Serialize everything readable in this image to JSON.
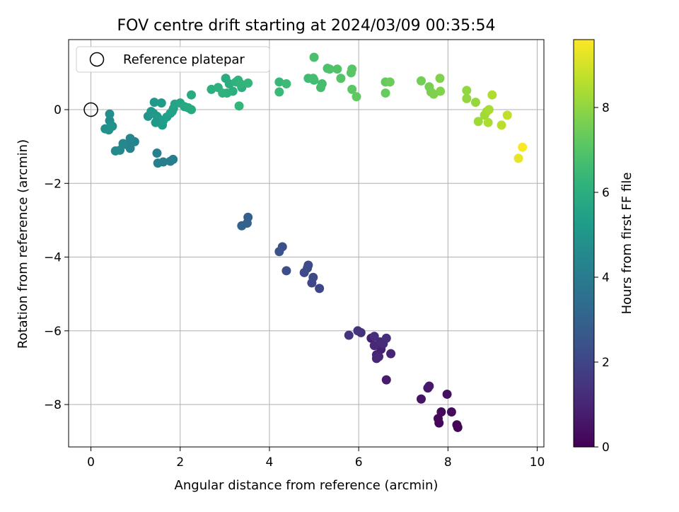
{
  "chart_data": {
    "type": "scatter",
    "title": "FOV centre drift starting at 2024/03/09 00:35:54",
    "xlabel": "Angular distance from reference (arcmin)",
    "ylabel": "Rotation from reference (arcmin)",
    "xlim": [
      -0.5,
      10.15
    ],
    "ylim": [
      -9.15,
      1.9
    ],
    "x_ticks": [
      0,
      2,
      4,
      6,
      8,
      10
    ],
    "y_ticks": [
      -8,
      -6,
      -4,
      -2,
      0
    ],
    "grid": true,
    "legend": {
      "position": "top-left",
      "entries": [
        "Reference platepar"
      ]
    },
    "reference_point": {
      "x": 0,
      "y": 0
    },
    "colorbar": {
      "label": "Hours from first FF file",
      "colormap": "viridis",
      "range": [
        0,
        9.6
      ],
      "ticks": [
        0,
        2,
        4,
        6,
        8
      ]
    },
    "series": [
      {
        "x": [
          8.22,
          8.2,
          7.8,
          7.78,
          7.85,
          8.08,
          7.98,
          7.4,
          7.55,
          7.58,
          6.62,
          6.28,
          6.5,
          6.4,
          6.72,
          6.4,
          6.45,
          6.35,
          6.48,
          6.55,
          6.62,
          6.35,
          6.05,
          5.98,
          5.78,
          5.12,
          4.95,
          4.98,
          4.78,
          4.85,
          4.87,
          4.38,
          4.29,
          4.22,
          3.52,
          3.5,
          3.38,
          1.84,
          1.78,
          1.62,
          1.5,
          1.48,
          0.98,
          0.88,
          0.88,
          0.8,
          0.72,
          0.65,
          0.55,
          0.48,
          0.42,
          0.42,
          0.4,
          0.32,
          0.45,
          1.28,
          1.35,
          1.4,
          1.48,
          1.52,
          1.55,
          1.6,
          1.62,
          1.7,
          1.78,
          1.82,
          1.85,
          1.88,
          2.0,
          2.1,
          2.18,
          2.25,
          2.25,
          1.42,
          1.45,
          1.58,
          3.02,
          3.1,
          3.18,
          3.38,
          3.05,
          3.25,
          3.3,
          3.35,
          3.52,
          2.7,
          2.85,
          2.95,
          3.32,
          4.22,
          4.22,
          4.38,
          4.87,
          5.0,
          5.15,
          5.18,
          5.0,
          5.3,
          5.35,
          5.52,
          5.6,
          5.85,
          5.83,
          5.85,
          5.95,
          4.98,
          6.6,
          6.6,
          6.7,
          7.4,
          7.58,
          7.62,
          7.68,
          7.82,
          7.83,
          8.42,
          8.42,
          8.62,
          8.68,
          8.82,
          8.87,
          8.92,
          8.9,
          8.99,
          9.2,
          9.33,
          9.58,
          9.67
        ],
        "y": [
          -8.62,
          -8.55,
          -8.5,
          -8.38,
          -8.2,
          -8.2,
          -7.72,
          -7.85,
          -7.55,
          -7.5,
          -7.33,
          -6.2,
          -6.5,
          -6.65,
          -6.62,
          -6.75,
          -6.7,
          -6.4,
          -6.3,
          -6.35,
          -6.2,
          -6.15,
          -6.05,
          -6.0,
          -6.12,
          -4.85,
          -4.7,
          -4.55,
          -4.42,
          -4.3,
          -4.22,
          -4.37,
          -3.72,
          -3.85,
          -2.92,
          -3.08,
          -3.15,
          -1.35,
          -1.4,
          -1.42,
          -1.45,
          -1.18,
          -0.87,
          -1.05,
          -0.78,
          -0.95,
          -0.92,
          -1.1,
          -1.12,
          -0.45,
          -0.3,
          -0.12,
          -0.55,
          -0.52,
          -0.45,
          -0.18,
          -0.05,
          -0.1,
          -0.18,
          -0.25,
          -0.35,
          -0.42,
          -0.3,
          -0.2,
          -0.1,
          -0.05,
          0.03,
          0.15,
          0.18,
          0.08,
          0.05,
          0.0,
          0.4,
          0.2,
          -0.35,
          0.18,
          0.85,
          0.7,
          0.5,
          0.6,
          0.45,
          0.75,
          0.8,
          0.7,
          0.72,
          0.55,
          0.6,
          0.45,
          0.1,
          0.75,
          0.48,
          0.7,
          0.85,
          0.8,
          0.6,
          0.7,
          1.42,
          1.12,
          1.1,
          1.1,
          0.85,
          1.1,
          1.0,
          0.55,
          0.35,
          0.85,
          0.75,
          0.45,
          0.75,
          0.78,
          0.62,
          0.48,
          0.42,
          0.85,
          0.5,
          0.52,
          0.3,
          0.2,
          -0.32,
          -0.15,
          -0.05,
          0.0,
          -0.35,
          0.4,
          -0.42,
          -0.15,
          -1.32,
          -1.02
        ],
        "hours": [
          0.05,
          0.1,
          0.15,
          0.2,
          0.25,
          0.3,
          0.4,
          0.5,
          0.6,
          0.65,
          0.75,
          0.8,
          0.85,
          0.9,
          0.95,
          1.0,
          1.05,
          1.1,
          1.15,
          1.2,
          1.25,
          1.3,
          1.35,
          1.4,
          1.45,
          2.0,
          2.05,
          2.1,
          2.15,
          2.2,
          2.25,
          2.3,
          2.35,
          2.4,
          2.9,
          2.95,
          3.0,
          4.0,
          4.05,
          4.1,
          4.15,
          4.2,
          4.3,
          4.35,
          4.4,
          4.45,
          4.5,
          4.55,
          4.6,
          4.65,
          4.7,
          4.75,
          4.8,
          4.85,
          4.9,
          5.0,
          5.05,
          5.1,
          5.15,
          5.2,
          5.25,
          5.3,
          5.35,
          5.4,
          5.45,
          5.5,
          5.55,
          5.6,
          5.65,
          5.7,
          5.75,
          5.8,
          5.85,
          5.1,
          5.15,
          5.2,
          5.9,
          5.95,
          6.0,
          6.05,
          6.1,
          6.15,
          6.2,
          6.25,
          6.3,
          6.0,
          6.1,
          6.2,
          6.35,
          6.45,
          6.5,
          6.55,
          6.6,
          6.65,
          6.7,
          6.75,
          6.8,
          6.85,
          6.9,
          6.95,
          7.0,
          7.05,
          7.1,
          7.15,
          7.2,
          6.7,
          7.3,
          7.35,
          7.4,
          7.55,
          7.6,
          7.65,
          7.7,
          7.75,
          7.8,
          8.0,
          8.05,
          8.1,
          8.2,
          8.25,
          8.3,
          8.35,
          8.4,
          8.45,
          8.6,
          8.7,
          9.3,
          9.55
        ]
      }
    ]
  }
}
